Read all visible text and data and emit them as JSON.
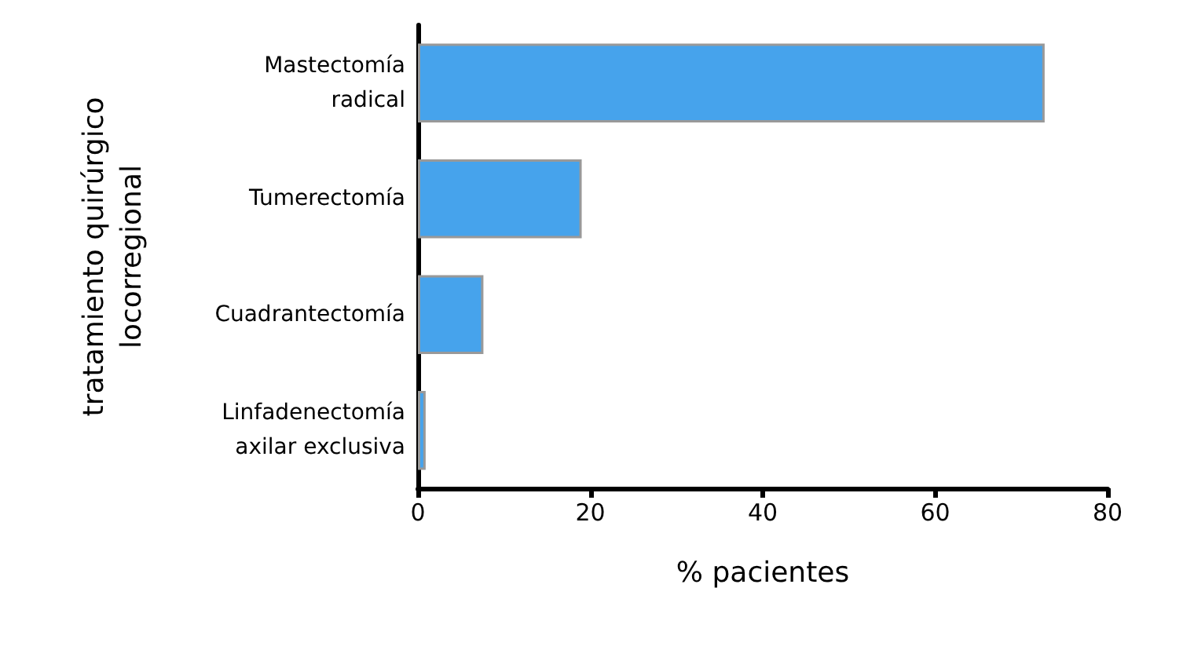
{
  "chart_data": {
    "type": "bar",
    "orientation": "horizontal",
    "categories": [
      "Mastectomía\nradical",
      "Tumerectomía",
      "Cuadrantectomía",
      "Linfadenectomía\naxilar exclusiva"
    ],
    "values": [
      72.7,
      19.0,
      7.6,
      0.9
    ],
    "color": "#46a3ec",
    "xlim": [
      0,
      80
    ],
    "xticks": [
      0,
      20,
      40,
      60,
      80
    ],
    "xlabel": "% pacientes",
    "ylabel": "tratamiento quirúrgico\nlocorregional"
  }
}
